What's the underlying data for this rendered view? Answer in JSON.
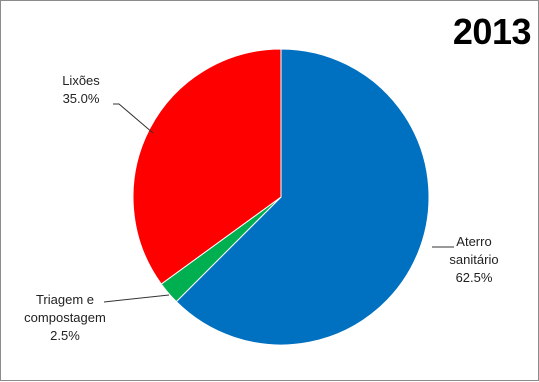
{
  "chart_data": {
    "type": "pie",
    "title": "2013",
    "slices": [
      {
        "name": "Aterro sanitário",
        "value": 62.5,
        "label_lines": [
          "Aterro",
          "sanitário"
        ],
        "value_label": "62.5%",
        "color": "#0070c0"
      },
      {
        "name": "Triagem e compostagem",
        "value": 2.5,
        "label_lines": [
          "Triagem e",
          "compostagem"
        ],
        "value_label": "2.5%",
        "color": "#00b050"
      },
      {
        "name": "Lixões",
        "value": 35.0,
        "label_lines": [
          "Lixões"
        ],
        "value_label": "35.0%",
        "color": "#ff0000"
      }
    ],
    "legend": "none"
  }
}
